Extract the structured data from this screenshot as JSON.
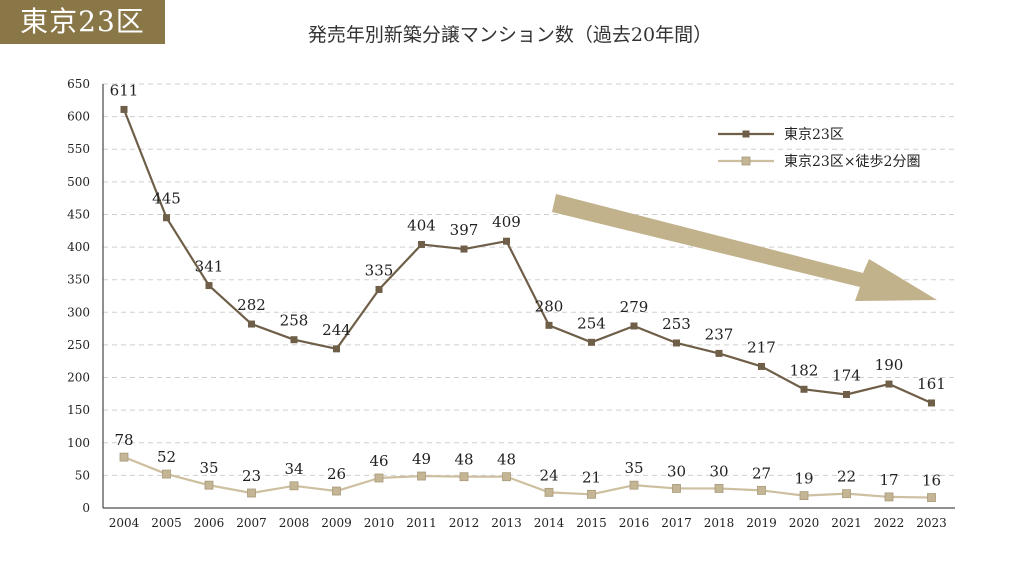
{
  "badge": {
    "label": "東京23区"
  },
  "chart_data": {
    "type": "line",
    "title": "発売年別新築分譲マンション数（過去20年間）",
    "xlabel": "",
    "ylabel": "",
    "ylim": [
      0,
      650
    ],
    "yticks": [
      0,
      50,
      100,
      150,
      200,
      250,
      300,
      350,
      400,
      450,
      500,
      550,
      600,
      650
    ],
    "grid": true,
    "legend_position": "top-right",
    "categories": [
      "2004",
      "2005",
      "2006",
      "2007",
      "2008",
      "2009",
      "2010",
      "2011",
      "2012",
      "2013",
      "2014",
      "2015",
      "2016",
      "2017",
      "2018",
      "2019",
      "2020",
      "2021",
      "2022",
      "2023"
    ],
    "series": [
      {
        "name": "東京23区",
        "color": "#6f5f48",
        "marker_fill": "#6f5f48",
        "values": [
          611,
          445,
          341,
          282,
          258,
          244,
          335,
          404,
          397,
          409,
          280,
          254,
          279,
          253,
          237,
          217,
          182,
          174,
          190,
          161
        ]
      },
      {
        "name": "東京23区×徒歩2分圏",
        "color": "#cdbf9f",
        "marker_fill": "#c4b594",
        "values": [
          78,
          52,
          35,
          23,
          34,
          26,
          46,
          49,
          48,
          48,
          24,
          21,
          35,
          30,
          30,
          27,
          19,
          22,
          17,
          16
        ]
      }
    ],
    "annotation": {
      "type": "trend-arrow",
      "direction": "down-right",
      "color": "#c2b28b"
    }
  }
}
